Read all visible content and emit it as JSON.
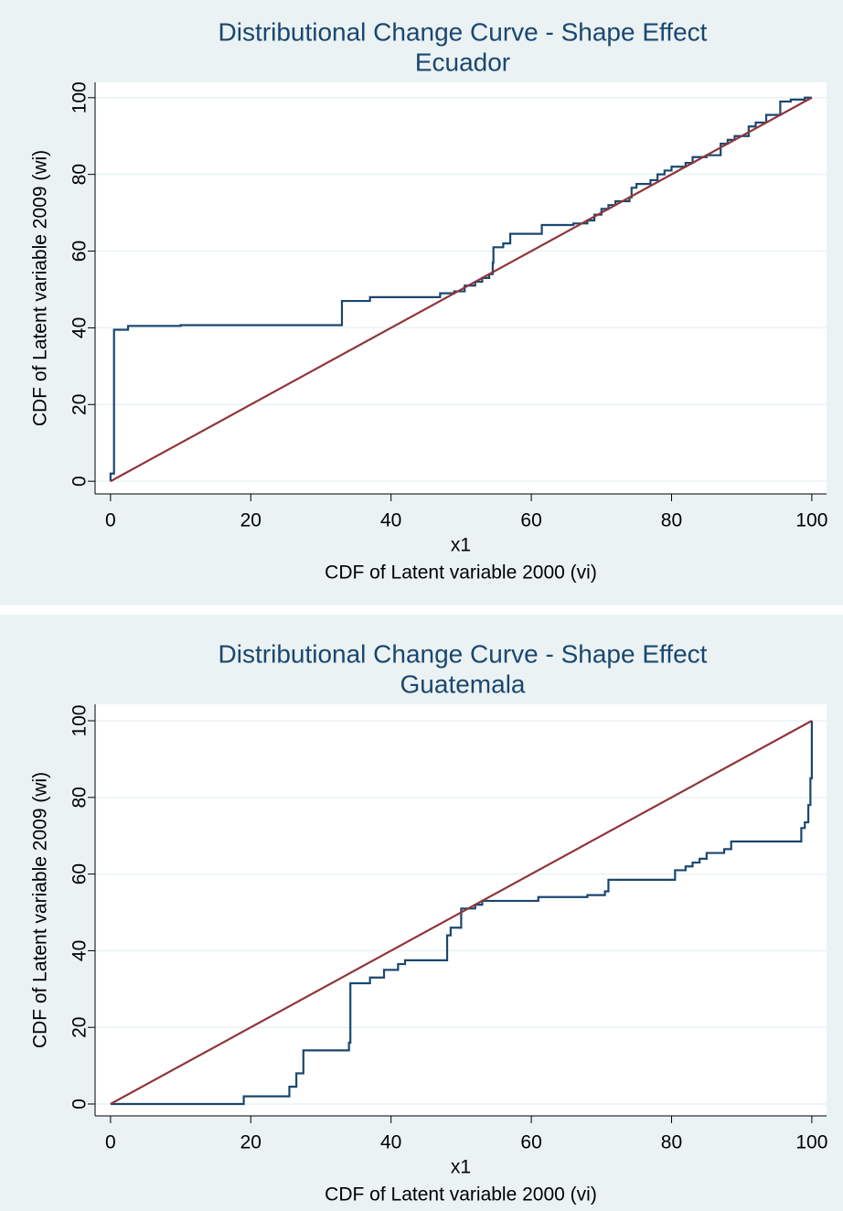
{
  "chart_data": [
    {
      "type": "line",
      "title": "Distributional Change Curve - Shape Effect",
      "subtitle": "Ecuador",
      "xlabel_top": "x1",
      "xlabel": "CDF of Latent variable 2000 (vi)",
      "ylabel": "CDF of Latent variable 2009 (wi)",
      "xlim": [
        -2.2,
        102.1
      ],
      "ylim": [
        -3.3,
        104
      ],
      "xticks": [
        0,
        20,
        40,
        60,
        80,
        100
      ],
      "yticks": [
        0,
        20,
        40,
        60,
        80,
        100
      ],
      "grid": true,
      "series": [
        {
          "color": "#1a476f",
          "x": [
            0,
            0,
            0.5,
            0.5,
            2.5,
            2.5,
            10,
            10,
            33,
            33,
            37,
            37,
            47,
            47,
            49,
            49,
            50.5,
            50.5,
            52,
            52,
            53,
            53,
            54,
            54,
            54.5,
            54.5,
            54.6,
            54.6,
            56,
            56,
            57,
            57,
            61.5,
            61.5,
            66,
            66,
            68,
            68,
            69,
            69,
            70,
            70,
            71,
            71,
            72,
            72,
            74,
            74,
            74.3,
            74.3,
            75,
            75,
            77,
            77,
            78,
            78,
            79,
            79,
            80,
            80,
            82,
            82,
            83,
            83,
            85,
            85,
            87,
            87,
            88,
            88,
            89,
            89,
            91,
            91,
            92,
            92,
            93.5,
            93.5,
            95.5,
            95.5,
            97,
            97,
            99,
            99,
            100
          ],
          "values": [
            0,
            2,
            2,
            39.5,
            39.5,
            40.5,
            40.5,
            40.7,
            40.7,
            47,
            47,
            48,
            48,
            49,
            49,
            49.5,
            49.5,
            51,
            51,
            52,
            52,
            53,
            53,
            54,
            54,
            57,
            57,
            61,
            61,
            62,
            62,
            64.5,
            64.5,
            66.8,
            66.8,
            67.2,
            67.2,
            68,
            68,
            69.5,
            69.5,
            71,
            71,
            72,
            72,
            73,
            73,
            74,
            74,
            76.5,
            76.5,
            77.5,
            77.5,
            78.5,
            78.5,
            80,
            80,
            81,
            81,
            82,
            82,
            83,
            83,
            84.5,
            84.5,
            85,
            85,
            88,
            88,
            89,
            89,
            90,
            90,
            92.5,
            92.5,
            93.5,
            93.5,
            95.5,
            95.5,
            99,
            99,
            99.5,
            99.5,
            100,
            100
          ]
        },
        {
          "color": "#90353b",
          "x": [
            0,
            100
          ],
          "values": [
            0,
            100
          ]
        }
      ]
    },
    {
      "type": "line",
      "title": "Distributional Change Curve - Shape Effect",
      "subtitle": "Guatemala",
      "xlabel_top": "x1",
      "xlabel": "CDF of Latent variable 2000 (vi)",
      "ylabel": "CDF of Latent variable 2009 (wi)",
      "xlim": [
        -2.2,
        102.1
      ],
      "ylim": [
        -3.1,
        104.3
      ],
      "xticks": [
        0,
        20,
        40,
        60,
        80,
        100
      ],
      "yticks": [
        0,
        20,
        40,
        60,
        80,
        100
      ],
      "grid": true,
      "series": [
        {
          "color": "#1a476f",
          "x": [
            0,
            19,
            19,
            25.5,
            25.5,
            26.5,
            26.5,
            27.5,
            27.5,
            34,
            34,
            34.2,
            34.2,
            37,
            37,
            39,
            39,
            41,
            41,
            42,
            42,
            48,
            48,
            48.5,
            48.5,
            50,
            50,
            52,
            52,
            53,
            53,
            61,
            61,
            68,
            68,
            70.5,
            70.5,
            71,
            71,
            80.5,
            80.5,
            82,
            82,
            83,
            83,
            84,
            84,
            85,
            85,
            87.5,
            87.5,
            88.5,
            88.5,
            98.5,
            98.5,
            99,
            99,
            99.5,
            99.5,
            99.8,
            99.8,
            100,
            100
          ],
          "values": [
            0,
            0,
            2,
            2,
            4.5,
            4.5,
            8,
            8,
            14,
            14,
            16,
            16,
            31.5,
            31.5,
            33,
            33,
            35,
            35,
            36.5,
            36.5,
            37.5,
            37.5,
            44,
            44,
            46,
            46,
            51,
            51,
            52,
            52,
            53,
            53,
            54,
            54,
            54.5,
            54.5,
            55.5,
            55.5,
            58.5,
            58.5,
            61,
            61,
            62,
            62,
            63,
            63,
            64,
            64,
            65.5,
            65.5,
            66.5,
            66.5,
            68.5,
            68.5,
            72,
            72,
            73.5,
            73.5,
            78,
            78,
            85,
            85,
            100
          ]
        },
        {
          "color": "#90353b",
          "x": [
            0,
            100
          ],
          "values": [
            0,
            100
          ]
        }
      ]
    }
  ]
}
